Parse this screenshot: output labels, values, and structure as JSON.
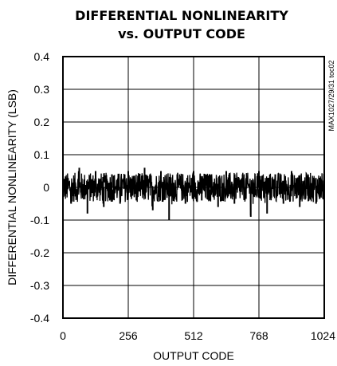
{
  "chart_data": {
    "type": "line",
    "title": "DIFFERENTIAL NONLINEARITY",
    "subtitle": "vs. OUTPUT CODE",
    "xlabel": "OUTPUT CODE",
    "ylabel": "DIFFERENTIAL NONLINEARITY (LSB)",
    "xlim": [
      0,
      1024
    ],
    "ylim": [
      -0.4,
      0.4
    ],
    "xticks": [
      0,
      256,
      512,
      768,
      1024
    ],
    "xtick_labels": [
      "0",
      "256",
      "512",
      "768",
      "1024"
    ],
    "yticks": [
      0.4,
      0.3,
      0.2,
      0.1,
      0,
      -0.1,
      -0.2,
      -0.3,
      -0.4
    ],
    "ytick_labels": [
      "0.4",
      "0.3",
      "0.2",
      "0.1",
      "0",
      "-0.1",
      "-0.2",
      "-0.3",
      "-0.4"
    ],
    "grid": true,
    "side_note": "MAX1027/29/31 toc02",
    "series": [
      {
        "x": [
          0,
          32,
          64,
          96,
          128,
          160,
          192,
          224,
          256,
          288,
          320,
          352,
          384,
          416,
          448,
          480,
          512,
          544,
          576,
          608,
          640,
          672,
          704,
          736,
          768,
          800,
          832,
          864,
          896,
          928,
          960,
          992,
          1024
        ],
        "values": [
          0.04,
          -0.05,
          0.06,
          -0.08,
          0.05,
          -0.06,
          0.04,
          -0.05,
          0.05,
          -0.04,
          0.06,
          -0.07,
          0.05,
          -0.1,
          0.04,
          -0.05,
          0.05,
          -0.04,
          0.04,
          -0.06,
          0.05,
          -0.05,
          0.04,
          -0.09,
          0.05,
          -0.08,
          0.04,
          -0.05,
          0.05,
          -0.06,
          0.04,
          -0.05,
          0.05
        ]
      }
    ]
  }
}
